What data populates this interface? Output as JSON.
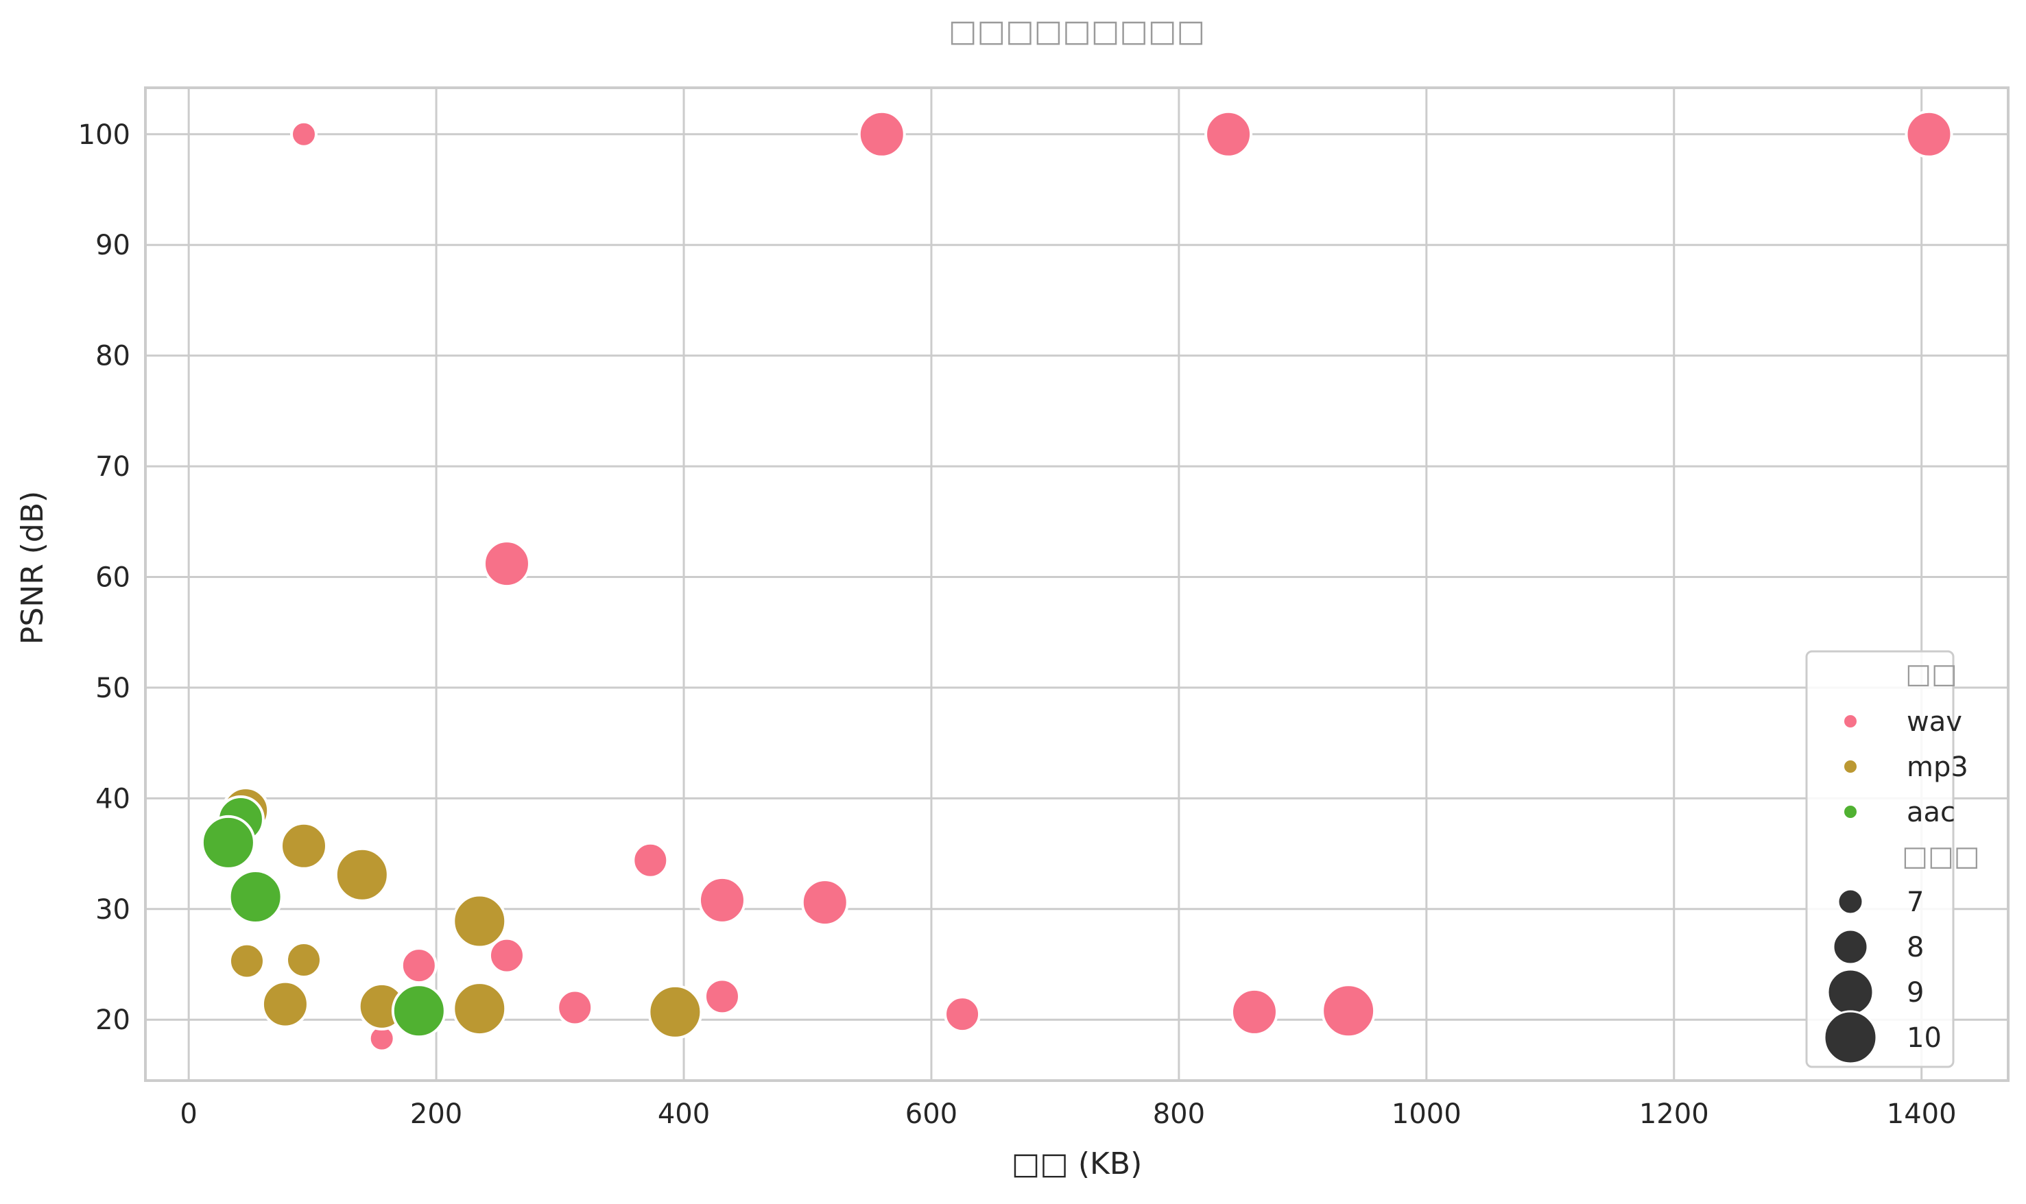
{
  "chart_data": {
    "type": "scatter",
    "title": "□□□□□□□□□",
    "xlabel": "□□ (KB)",
    "ylabel": "PSNR (dB)",
    "xlim": [
      -35,
      1470
    ],
    "ylim": [
      14.5,
      104.2
    ],
    "xticks": [
      0,
      200,
      400,
      600,
      800,
      1000,
      1200,
      1400
    ],
    "yticks": [
      20,
      30,
      40,
      50,
      60,
      70,
      80,
      90,
      100
    ],
    "grid": true,
    "legend_position": "lower-right",
    "hue_title": "□□",
    "size_title": "□□□",
    "series": [
      {
        "name": "wav",
        "color": "#f77189",
        "points": [
          {
            "x": 93,
            "y": 100,
            "size": 7
          },
          {
            "x": 560,
            "y": 100,
            "size": 9
          },
          {
            "x": 840,
            "y": 100,
            "size": 9
          },
          {
            "x": 1406,
            "y": 100,
            "size": 9
          },
          {
            "x": 257,
            "y": 61.2,
            "size": 9
          },
          {
            "x": 373,
            "y": 34.4,
            "size": 8
          },
          {
            "x": 431,
            "y": 30.8,
            "size": 9
          },
          {
            "x": 514,
            "y": 30.6,
            "size": 9
          },
          {
            "x": 257,
            "y": 25.8,
            "size": 8
          },
          {
            "x": 93,
            "y": 25.4,
            "size": 7
          },
          {
            "x": 186,
            "y": 24.9,
            "size": 8
          },
          {
            "x": 431,
            "y": 22.1,
            "size": 8
          },
          {
            "x": 312,
            "y": 21.1,
            "size": 8
          },
          {
            "x": 625,
            "y": 20.5,
            "size": 8
          },
          {
            "x": 861,
            "y": 20.7,
            "size": 9
          },
          {
            "x": 937,
            "y": 20.8,
            "size": 10
          },
          {
            "x": 156,
            "y": 18.3,
            "size": 7
          }
        ]
      },
      {
        "name": "mp3",
        "color": "#bb9832",
        "points": [
          {
            "x": 46,
            "y": 38.9,
            "size": 9
          },
          {
            "x": 93,
            "y": 35.7,
            "size": 9
          },
          {
            "x": 140,
            "y": 33.1,
            "size": 10
          },
          {
            "x": 235,
            "y": 28.9,
            "size": 10
          },
          {
            "x": 47,
            "y": 25.3,
            "size": 8
          },
          {
            "x": 93,
            "y": 25.4,
            "size": 8
          },
          {
            "x": 78,
            "y": 21.4,
            "size": 9
          },
          {
            "x": 156,
            "y": 21.2,
            "size": 9
          },
          {
            "x": 235,
            "y": 21.0,
            "size": 10
          },
          {
            "x": 393,
            "y": 20.7,
            "size": 10
          }
        ]
      },
      {
        "name": "aac",
        "color": "#50b131",
        "points": [
          {
            "x": 42,
            "y": 38.1,
            "size": 9
          },
          {
            "x": 32,
            "y": 36.0,
            "size": 10
          },
          {
            "x": 54,
            "y": 31.1,
            "size": 10
          },
          {
            "x": 186,
            "y": 20.8,
            "size": 10
          }
        ]
      }
    ],
    "size_legend": [
      7,
      8,
      9,
      10
    ]
  }
}
